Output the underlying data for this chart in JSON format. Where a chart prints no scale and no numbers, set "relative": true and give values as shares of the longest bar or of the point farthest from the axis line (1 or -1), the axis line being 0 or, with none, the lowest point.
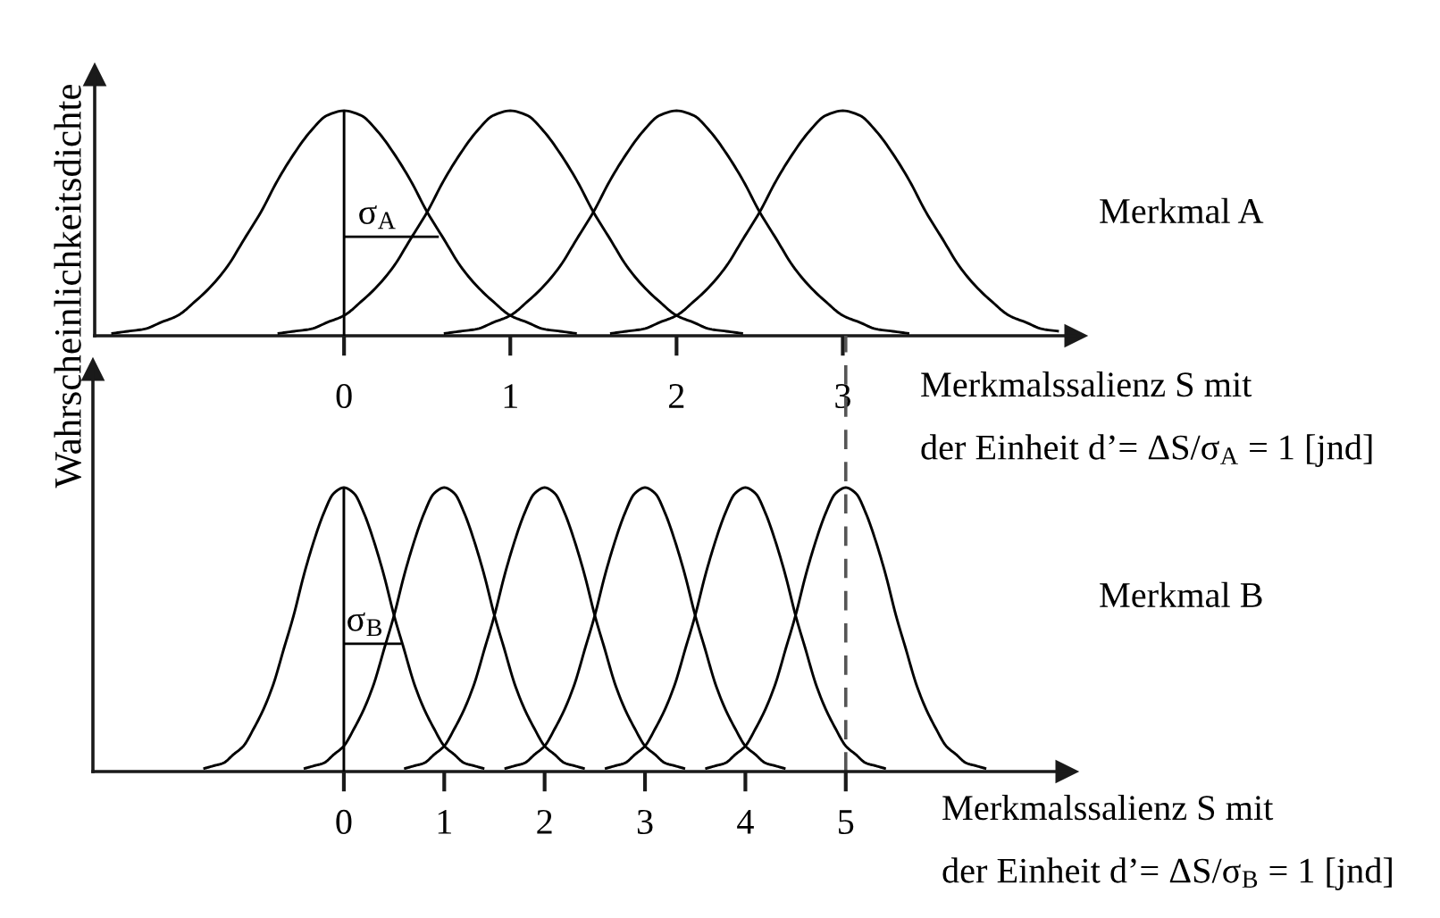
{
  "chart_data": [
    {
      "type": "line",
      "relative": true,
      "tick_labels": "x",
      "ylabel": "Wahrscheinlichkeitsdichte",
      "xlabel": "Merkmalssalienz S mit\nder Einheit d’= ΔS/σ$_{A}$ = 1 [jnd]",
      "xlim": [
        -1.5,
        4.4
      ],
      "xticks": [
        0,
        1,
        2,
        3
      ],
      "annotations": [
        "Merkmal A",
        {
          "text": "σ$_{A}$",
          "x": 0.2,
          "y": 0.44
        }
      ],
      "series": [
        {
          "color": "#000000",
          "x": [
            -1.4,
            -1.3,
            -1.2,
            -1.1,
            -1.0,
            -0.9,
            -0.8,
            -0.7,
            -0.6,
            -0.5,
            -0.4,
            -0.3,
            -0.2,
            -0.1,
            0,
            0.1,
            0.2,
            0.3,
            0.4,
            0.5,
            0.6,
            0.7,
            0.8,
            0.9,
            1.0,
            1.1,
            1.2,
            1.3,
            1.4
          ],
          "values": [
            0.01,
            0.02,
            0.03,
            0.06,
            0.09,
            0.15,
            0.22,
            0.31,
            0.43,
            0.55,
            0.69,
            0.81,
            0.91,
            0.98,
            1,
            0.98,
            0.91,
            0.81,
            0.69,
            0.55,
            0.43,
            0.31,
            0.22,
            0.15,
            0.09,
            0.06,
            0.03,
            0.02,
            0.01
          ]
        },
        {
          "color": "#000000",
          "x": [
            -0.4,
            -0.3,
            -0.2,
            -0.1,
            0,
            0.1,
            0.2,
            0.3,
            0.4,
            0.5,
            0.6,
            0.7,
            0.8,
            0.9,
            1,
            1.1,
            1.2,
            1.3,
            1.4,
            1.5,
            1.6,
            1.7,
            1.8,
            1.9,
            2,
            2.1,
            2.2,
            2.3,
            2.4
          ],
          "values": [
            0.01,
            0.02,
            0.03,
            0.06,
            0.09,
            0.15,
            0.22,
            0.31,
            0.43,
            0.55,
            0.69,
            0.81,
            0.91,
            0.98,
            1,
            0.98,
            0.91,
            0.81,
            0.69,
            0.55,
            0.43,
            0.31,
            0.22,
            0.15,
            0.09,
            0.06,
            0.03,
            0.02,
            0.01
          ]
        },
        {
          "color": "#000000",
          "x": [
            0.6,
            0.7,
            0.8,
            0.9,
            1,
            1.1,
            1.2,
            1.3,
            1.4,
            1.5,
            1.6,
            1.7,
            1.8,
            1.9,
            2,
            2.1,
            2.2,
            2.3,
            2.4,
            2.5,
            2.6,
            2.7,
            2.8,
            2.9,
            3,
            3.1,
            3.2,
            3.3,
            3.4
          ],
          "values": [
            0.01,
            0.02,
            0.03,
            0.06,
            0.09,
            0.15,
            0.22,
            0.31,
            0.43,
            0.55,
            0.69,
            0.81,
            0.91,
            0.98,
            1,
            0.98,
            0.91,
            0.81,
            0.69,
            0.55,
            0.43,
            0.31,
            0.22,
            0.15,
            0.09,
            0.06,
            0.03,
            0.02,
            0.01
          ]
        },
        {
          "color": "#000000",
          "x": [
            1.6,
            1.7,
            1.8,
            1.9,
            2,
            2.1,
            2.2,
            2.3,
            2.4,
            2.5,
            2.6,
            2.7,
            2.8,
            2.9,
            3,
            3.1,
            3.2,
            3.3,
            3.4,
            3.5,
            3.6,
            3.7,
            3.8,
            3.9,
            4,
            4.1,
            4.2,
            4.3
          ],
          "values": [
            0.01,
            0.02,
            0.03,
            0.06,
            0.09,
            0.15,
            0.22,
            0.31,
            0.43,
            0.55,
            0.69,
            0.81,
            0.91,
            0.98,
            1,
            0.98,
            0.91,
            0.81,
            0.69,
            0.55,
            0.43,
            0.31,
            0.22,
            0.15,
            0.09,
            0.06,
            0.03,
            0.02
          ]
        },
        {
          "color": "#000000",
          "x": [
            0,
            0
          ],
          "values": [
            0,
            1
          ]
        },
        {
          "color": "#000000",
          "x": [
            0,
            0.57
          ],
          "values": [
            0.44,
            0.44
          ]
        }
      ]
    },
    {
      "type": "line",
      "relative": true,
      "tick_labels": "x",
      "xlabel": "Merkmalssalienz S mit\nder Einheit d’= ΔS/σ$_{B}$ = 1 [jnd]",
      "xlim": [
        -2.5,
        7.2
      ],
      "xticks": [
        0,
        1,
        2,
        3,
        4,
        5
      ],
      "annotations": [
        "Merkmal B",
        {
          "text": "σ$_{B}$",
          "x": 0.21,
          "y": 0.45
        }
      ],
      "ref_lines": [
        {
          "axis": "x",
          "value": 5,
          "color": "#555555",
          "line_style": "dashed"
        }
      ],
      "series": [
        {
          "color": "#000000",
          "x": [
            -1.4,
            -1.3,
            -1.2,
            -1.1,
            -1.0,
            -0.9,
            -0.8,
            -0.7,
            -0.6,
            -0.5,
            -0.4,
            -0.3,
            -0.2,
            -0.1,
            0,
            0.1,
            0.2,
            0.3,
            0.4,
            0.5,
            0.6,
            0.7,
            0.8,
            0.9,
            1.0,
            1.1,
            1.2,
            1.3,
            1.4
          ],
          "values": [
            0.01,
            0.02,
            0.03,
            0.06,
            0.09,
            0.15,
            0.22,
            0.31,
            0.43,
            0.55,
            0.69,
            0.81,
            0.91,
            0.98,
            1,
            0.98,
            0.91,
            0.81,
            0.69,
            0.55,
            0.43,
            0.31,
            0.22,
            0.15,
            0.09,
            0.06,
            0.03,
            0.02,
            0.01
          ]
        },
        {
          "color": "#000000",
          "x": [
            -0.4,
            -0.3,
            -0.2,
            -0.1,
            0,
            0.1,
            0.2,
            0.3,
            0.4,
            0.5,
            0.6,
            0.7,
            0.8,
            0.9,
            1,
            1.1,
            1.2,
            1.3,
            1.4,
            1.5,
            1.6,
            1.7,
            1.8,
            1.9,
            2,
            2.1,
            2.2,
            2.3,
            2.4
          ],
          "values": [
            0.01,
            0.02,
            0.03,
            0.06,
            0.09,
            0.15,
            0.22,
            0.31,
            0.43,
            0.55,
            0.69,
            0.81,
            0.91,
            0.98,
            1,
            0.98,
            0.91,
            0.81,
            0.69,
            0.55,
            0.43,
            0.31,
            0.22,
            0.15,
            0.09,
            0.06,
            0.03,
            0.02,
            0.01
          ]
        },
        {
          "color": "#000000",
          "x": [
            0.6,
            0.7,
            0.8,
            0.9,
            1,
            1.1,
            1.2,
            1.3,
            1.4,
            1.5,
            1.6,
            1.7,
            1.8,
            1.9,
            2,
            2.1,
            2.2,
            2.3,
            2.4,
            2.5,
            2.6,
            2.7,
            2.8,
            2.9,
            3,
            3.1,
            3.2,
            3.3,
            3.4
          ],
          "values": [
            0.01,
            0.02,
            0.03,
            0.06,
            0.09,
            0.15,
            0.22,
            0.31,
            0.43,
            0.55,
            0.69,
            0.81,
            0.91,
            0.98,
            1,
            0.98,
            0.91,
            0.81,
            0.69,
            0.55,
            0.43,
            0.31,
            0.22,
            0.15,
            0.09,
            0.06,
            0.03,
            0.02,
            0.01
          ]
        },
        {
          "color": "#000000",
          "x": [
            1.6,
            1.7,
            1.8,
            1.9,
            2,
            2.1,
            2.2,
            2.3,
            2.4,
            2.5,
            2.6,
            2.7,
            2.8,
            2.9,
            3,
            3.1,
            3.2,
            3.3,
            3.4,
            3.5,
            3.6,
            3.7,
            3.8,
            3.9,
            4,
            4.1,
            4.2,
            4.3,
            4.4
          ],
          "values": [
            0.01,
            0.02,
            0.03,
            0.06,
            0.09,
            0.15,
            0.22,
            0.31,
            0.43,
            0.55,
            0.69,
            0.81,
            0.91,
            0.98,
            1,
            0.98,
            0.91,
            0.81,
            0.69,
            0.55,
            0.43,
            0.31,
            0.22,
            0.15,
            0.09,
            0.06,
            0.03,
            0.02,
            0.01
          ]
        },
        {
          "color": "#000000",
          "x": [
            2.6,
            2.7,
            2.8,
            2.9,
            3,
            3.1,
            3.2,
            3.3,
            3.4,
            3.5,
            3.6,
            3.7,
            3.8,
            3.9,
            4,
            4.1,
            4.2,
            4.3,
            4.4,
            4.5,
            4.6,
            4.7,
            4.8,
            4.9,
            5,
            5.1,
            5.2,
            5.3,
            5.4
          ],
          "values": [
            0.01,
            0.02,
            0.03,
            0.06,
            0.09,
            0.15,
            0.22,
            0.31,
            0.43,
            0.55,
            0.69,
            0.81,
            0.91,
            0.98,
            1,
            0.98,
            0.91,
            0.81,
            0.69,
            0.55,
            0.43,
            0.31,
            0.22,
            0.15,
            0.09,
            0.06,
            0.03,
            0.02,
            0.01
          ]
        },
        {
          "color": "#000000",
          "x": [
            3.6,
            3.7,
            3.8,
            3.9,
            4,
            4.1,
            4.2,
            4.3,
            4.4,
            4.5,
            4.6,
            4.7,
            4.8,
            4.9,
            5,
            5.1,
            5.2,
            5.3,
            5.4,
            5.5,
            5.6,
            5.7,
            5.8,
            5.9,
            6,
            6.1,
            6.2,
            6.3,
            6.4
          ],
          "values": [
            0.01,
            0.02,
            0.03,
            0.06,
            0.09,
            0.15,
            0.22,
            0.31,
            0.43,
            0.55,
            0.69,
            0.81,
            0.91,
            0.98,
            1,
            0.98,
            0.91,
            0.81,
            0.69,
            0.55,
            0.43,
            0.31,
            0.22,
            0.15,
            0.09,
            0.06,
            0.03,
            0.02,
            0.01
          ]
        },
        {
          "color": "#000000",
          "x": [
            0,
            0
          ],
          "values": [
            0,
            1
          ]
        },
        {
          "color": "#000000",
          "x": [
            0,
            0.57
          ],
          "values": [
            0.45,
            0.45
          ]
        }
      ]
    }
  ]
}
